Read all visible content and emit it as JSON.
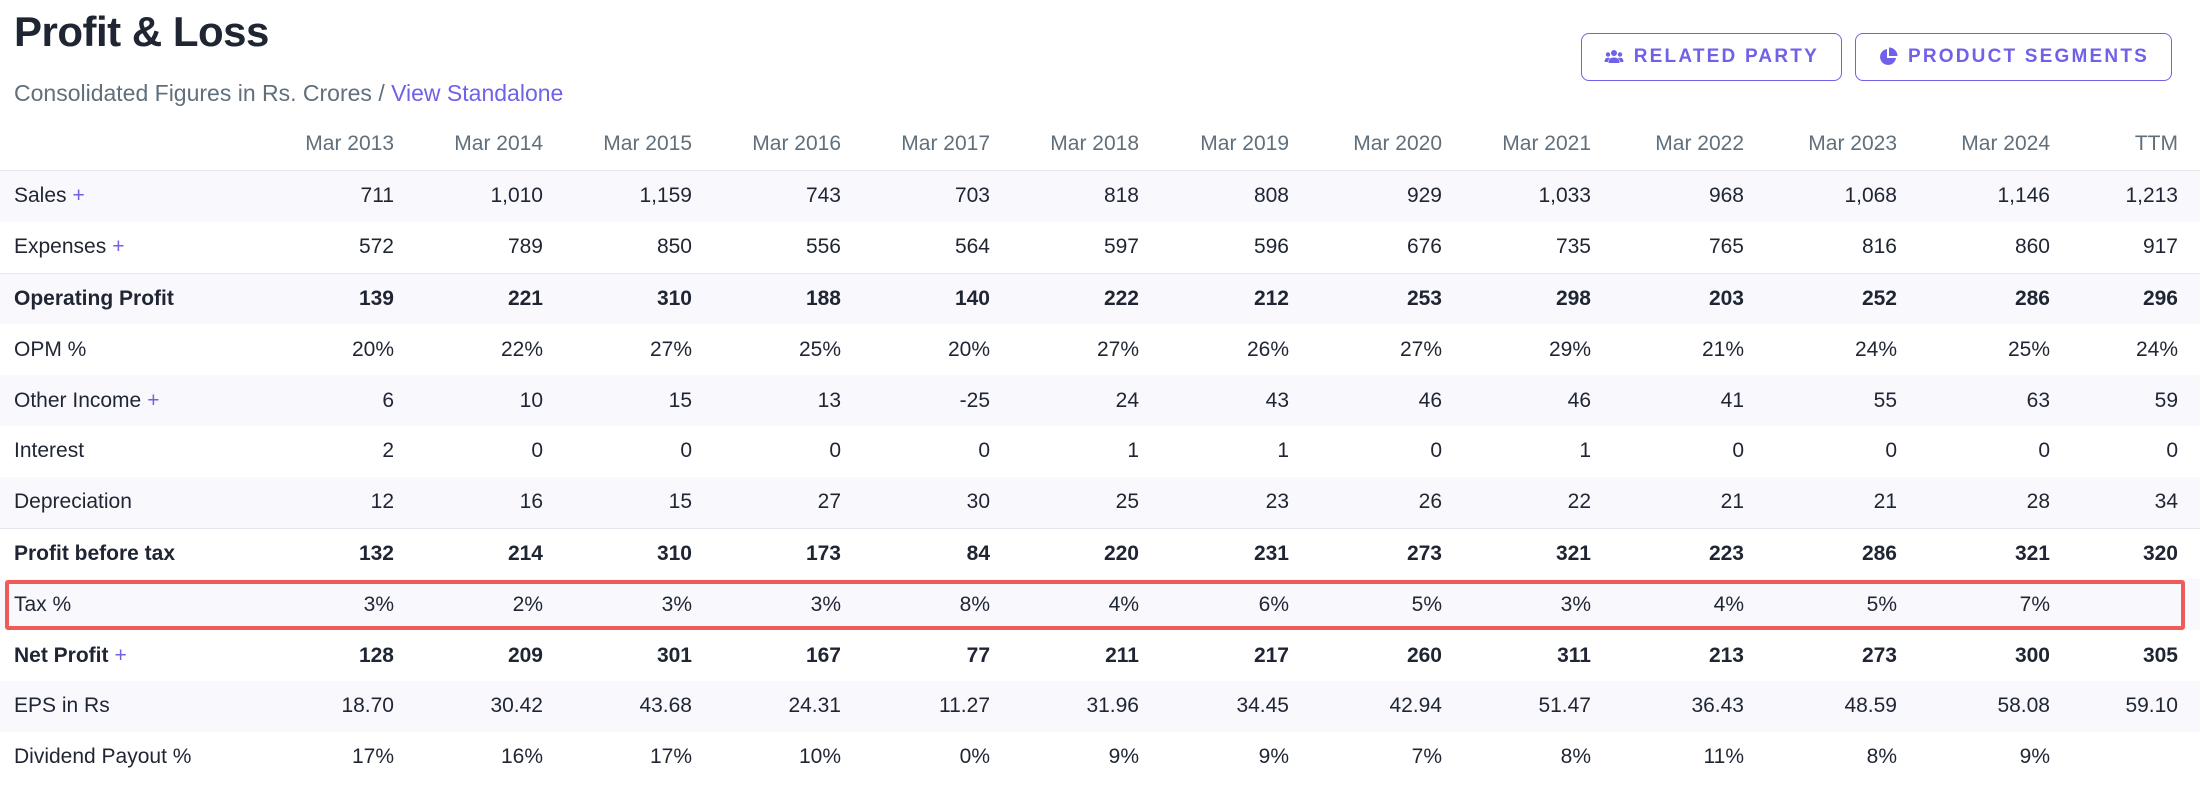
{
  "header": {
    "title": "Profit & Loss",
    "subtitle_text": "Consolidated Figures in Rs. Crores / ",
    "subtitle_link": "View Standalone"
  },
  "actions": {
    "related_party": "RELATED PARTY",
    "product_segments": "PRODUCT SEGMENTS"
  },
  "colors": {
    "accent": "#6f61e8",
    "highlight": "#ef5b58",
    "stripe": "#f8f8fd"
  },
  "table": {
    "columns": [
      "Mar 2013",
      "Mar 2014",
      "Mar 2015",
      "Mar 2016",
      "Mar 2017",
      "Mar 2018",
      "Mar 2019",
      "Mar 2020",
      "Mar 2021",
      "Mar 2022",
      "Mar 2023",
      "Mar 2024",
      "TTM"
    ],
    "rows": [
      {
        "label": "Sales",
        "plus": "+",
        "bold": false,
        "stripe": true,
        "topline": false,
        "values": [
          "711",
          "1,010",
          "1,159",
          "743",
          "703",
          "818",
          "808",
          "929",
          "1,033",
          "968",
          "1,068",
          "1,146",
          "1,213"
        ]
      },
      {
        "label": "Expenses",
        "plus": "+",
        "bold": false,
        "stripe": false,
        "topline": false,
        "values": [
          "572",
          "789",
          "850",
          "556",
          "564",
          "597",
          "596",
          "676",
          "735",
          "765",
          "816",
          "860",
          "917"
        ]
      },
      {
        "label": "Operating Profit",
        "plus": "",
        "bold": true,
        "stripe": true,
        "topline": true,
        "values": [
          "139",
          "221",
          "310",
          "188",
          "140",
          "222",
          "212",
          "253",
          "298",
          "203",
          "252",
          "286",
          "296"
        ]
      },
      {
        "label": "OPM %",
        "plus": "",
        "bold": false,
        "stripe": false,
        "topline": false,
        "values": [
          "20%",
          "22%",
          "27%",
          "25%",
          "20%",
          "27%",
          "26%",
          "27%",
          "29%",
          "21%",
          "24%",
          "25%",
          "24%"
        ]
      },
      {
        "label": "Other Income",
        "plus": "+",
        "bold": false,
        "stripe": true,
        "topline": false,
        "values": [
          "6",
          "10",
          "15",
          "13",
          "-25",
          "24",
          "43",
          "46",
          "46",
          "41",
          "55",
          "63",
          "59"
        ]
      },
      {
        "label": "Interest",
        "plus": "",
        "bold": false,
        "stripe": false,
        "topline": false,
        "values": [
          "2",
          "0",
          "0",
          "0",
          "0",
          "1",
          "1",
          "0",
          "1",
          "0",
          "0",
          "0",
          "0"
        ]
      },
      {
        "label": "Depreciation",
        "plus": "",
        "bold": false,
        "stripe": true,
        "topline": false,
        "values": [
          "12",
          "16",
          "15",
          "27",
          "30",
          "25",
          "23",
          "26",
          "22",
          "21",
          "21",
          "28",
          "34"
        ]
      },
      {
        "label": "Profit before tax",
        "plus": "",
        "bold": true,
        "stripe": false,
        "topline": true,
        "values": [
          "132",
          "214",
          "310",
          "173",
          "84",
          "220",
          "231",
          "273",
          "321",
          "223",
          "286",
          "321",
          "320"
        ]
      },
      {
        "label": "Tax %",
        "plus": "",
        "bold": false,
        "stripe": true,
        "topline": false,
        "highlight": true,
        "values": [
          "3%",
          "2%",
          "3%",
          "3%",
          "8%",
          "4%",
          "6%",
          "5%",
          "3%",
          "4%",
          "5%",
          "7%",
          ""
        ]
      },
      {
        "label": "Net Profit",
        "plus": "+",
        "bold": true,
        "stripe": false,
        "topline": false,
        "values": [
          "128",
          "209",
          "301",
          "167",
          "77",
          "211",
          "217",
          "260",
          "311",
          "213",
          "273",
          "300",
          "305"
        ]
      },
      {
        "label": "EPS in Rs",
        "plus": "",
        "bold": false,
        "stripe": true,
        "topline": false,
        "values": [
          "18.70",
          "30.42",
          "43.68",
          "24.31",
          "11.27",
          "31.96",
          "34.45",
          "42.94",
          "51.47",
          "36.43",
          "48.59",
          "58.08",
          "59.10"
        ]
      },
      {
        "label": "Dividend Payout %",
        "plus": "",
        "bold": false,
        "stripe": false,
        "topline": false,
        "values": [
          "17%",
          "16%",
          "17%",
          "10%",
          "0%",
          "9%",
          "9%",
          "7%",
          "8%",
          "11%",
          "8%",
          "9%",
          ""
        ]
      }
    ]
  }
}
